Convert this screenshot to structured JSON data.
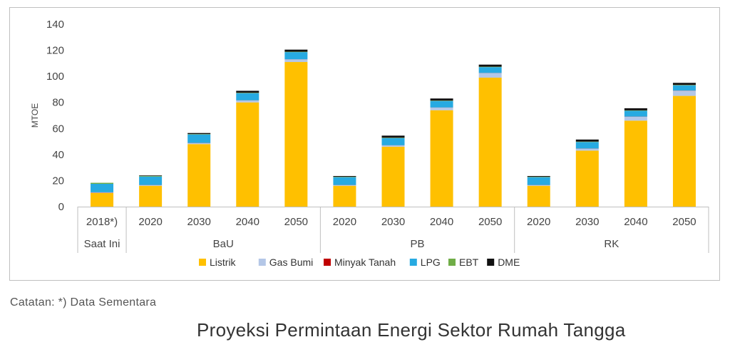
{
  "note": "Catatan: *) Data Sementara",
  "caption": "Proyeksi Permintaan Energi Sektor Rumah Tangga",
  "chart_data": {
    "type": "bar",
    "stacked": true,
    "ylabel": "MTOE",
    "ylim": [
      0,
      140
    ],
    "yticks": [
      0,
      20,
      40,
      60,
      80,
      100,
      120,
      140
    ],
    "grid": false,
    "legend_position": "bottom",
    "categories": [
      "2018*)",
      "2020",
      "2030",
      "2040",
      "2050",
      "2020",
      "2030",
      "2040",
      "2050",
      "2020",
      "2030",
      "2040",
      "2050"
    ],
    "groups": [
      {
        "label": "Saat Ini",
        "span": 1
      },
      {
        "label": "BaU",
        "span": 4
      },
      {
        "label": "PB",
        "span": 4
      },
      {
        "label": "RK",
        "span": 4
      }
    ],
    "series": [
      {
        "name": "Listrik",
        "color": "#FFC000",
        "values": [
          10.5,
          16,
          48,
          80,
          111,
          16,
          46,
          74,
          99,
          16,
          43,
          66,
          85
        ]
      },
      {
        "name": "Gas Bumi",
        "color": "#B4C7E7",
        "values": [
          0.3,
          0.5,
          0.8,
          1.5,
          2,
          0.5,
          1,
          2,
          3.5,
          0.5,
          1.5,
          3,
          4
        ]
      },
      {
        "name": "Minyak Tanah",
        "color": "#C00000",
        "values": [
          0.2,
          0.1,
          0.1,
          0.1,
          0.1,
          0.1,
          0.1,
          0.1,
          0.1,
          0.1,
          0.1,
          0.1,
          0.1
        ]
      },
      {
        "name": "LPG",
        "color": "#27AAE1",
        "values": [
          6.5,
          6.5,
          6.5,
          5.5,
          5.5,
          6,
          5.5,
          5,
          4.5,
          6,
          5,
          4.5,
          4
        ]
      },
      {
        "name": "EBT",
        "color": "#70AD47",
        "values": [
          0.8,
          0.5,
          0.3,
          0.3,
          0.3,
          0.3,
          0.3,
          0.3,
          0.3,
          0.3,
          0.3,
          0.3,
          0.3
        ]
      },
      {
        "name": "DME",
        "color": "#111111",
        "values": [
          0,
          0.4,
          0.8,
          1.5,
          1.6,
          0.6,
          1.6,
          1.6,
          1.6,
          0.6,
          1.6,
          1.6,
          1.6
        ]
      }
    ]
  }
}
